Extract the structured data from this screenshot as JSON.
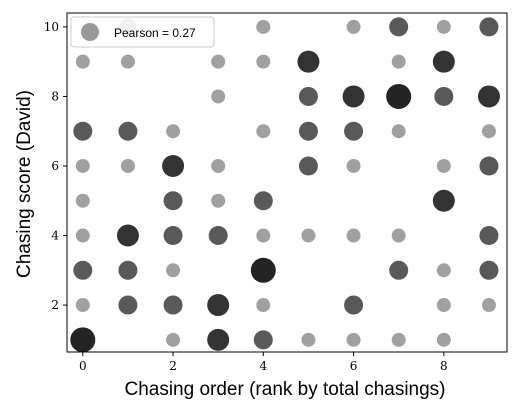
{
  "chart_data": {
    "type": "scatter",
    "title": "",
    "xlabel": "Chasing order (rank by total chasings)",
    "ylabel": "Chasing score (David)",
    "xlim": [
      -0.35,
      9.4
    ],
    "ylim": [
      0.65,
      10.4
    ],
    "xticks": [
      0,
      2,
      4,
      6,
      8
    ],
    "yticks": [
      2,
      4,
      6,
      8,
      10
    ],
    "grid": false,
    "legend": {
      "label": "Pearson = 0.27",
      "placement": "top-left"
    },
    "size_levels": {
      "1": {
        "r": 7,
        "color": "#a0a0a0"
      },
      "2": {
        "r": 8.5,
        "color": "#999999"
      },
      "3": {
        "r": 9.5,
        "color": "#595959"
      },
      "4": {
        "r": 11,
        "color": "#333333"
      },
      "5": {
        "r": 12.5,
        "color": "#242424"
      }
    },
    "points": [
      {
        "x": 0,
        "y": 1,
        "level": 5
      },
      {
        "x": 0,
        "y": 2,
        "level": 1
      },
      {
        "x": 0,
        "y": 3,
        "level": 3
      },
      {
        "x": 0,
        "y": 4,
        "level": 1
      },
      {
        "x": 0,
        "y": 5,
        "level": 1
      },
      {
        "x": 0,
        "y": 6,
        "level": 1
      },
      {
        "x": 0,
        "y": 7,
        "level": 3
      },
      {
        "x": 0,
        "y": 9,
        "level": 1
      },
      {
        "x": 1,
        "y": 2,
        "level": 3
      },
      {
        "x": 1,
        "y": 3,
        "level": 3
      },
      {
        "x": 1,
        "y": 4,
        "level": 4
      },
      {
        "x": 1,
        "y": 6,
        "level": 1
      },
      {
        "x": 1,
        "y": 7,
        "level": 3
      },
      {
        "x": 1,
        "y": 9,
        "level": 1
      },
      {
        "x": 1,
        "y": 10,
        "level": 2
      },
      {
        "x": 2,
        "y": 1,
        "level": 1
      },
      {
        "x": 2,
        "y": 2,
        "level": 3
      },
      {
        "x": 2,
        "y": 3,
        "level": 1
      },
      {
        "x": 2,
        "y": 4,
        "level": 3
      },
      {
        "x": 2,
        "y": 5,
        "level": 3
      },
      {
        "x": 2,
        "y": 6,
        "level": 4
      },
      {
        "x": 2,
        "y": 7,
        "level": 1
      },
      {
        "x": 3,
        "y": 1,
        "level": 4
      },
      {
        "x": 3,
        "y": 2,
        "level": 4
      },
      {
        "x": 3,
        "y": 4,
        "level": 3
      },
      {
        "x": 3,
        "y": 5,
        "level": 1
      },
      {
        "x": 3,
        "y": 6,
        "level": 1
      },
      {
        "x": 3,
        "y": 8,
        "level": 1
      },
      {
        "x": 3,
        "y": 9,
        "level": 1
      },
      {
        "x": 4,
        "y": 1,
        "level": 3
      },
      {
        "x": 4,
        "y": 2,
        "level": 1
      },
      {
        "x": 4,
        "y": 3,
        "level": 5
      },
      {
        "x": 4,
        "y": 4,
        "level": 1
      },
      {
        "x": 4,
        "y": 5,
        "level": 3
      },
      {
        "x": 4,
        "y": 7,
        "level": 1
      },
      {
        "x": 4,
        "y": 9,
        "level": 1
      },
      {
        "x": 4,
        "y": 10,
        "level": 1
      },
      {
        "x": 5,
        "y": 1,
        "level": 1
      },
      {
        "x": 5,
        "y": 4,
        "level": 1
      },
      {
        "x": 5,
        "y": 6,
        "level": 3
      },
      {
        "x": 5,
        "y": 7,
        "level": 3
      },
      {
        "x": 5,
        "y": 8,
        "level": 3
      },
      {
        "x": 5,
        "y": 9,
        "level": 4
      },
      {
        "x": 6,
        "y": 1,
        "level": 1
      },
      {
        "x": 6,
        "y": 2,
        "level": 3
      },
      {
        "x": 6,
        "y": 4,
        "level": 1
      },
      {
        "x": 6,
        "y": 6,
        "level": 1
      },
      {
        "x": 6,
        "y": 7,
        "level": 3
      },
      {
        "x": 6,
        "y": 8,
        "level": 4
      },
      {
        "x": 6,
        "y": 10,
        "level": 1
      },
      {
        "x": 7,
        "y": 1,
        "level": 1
      },
      {
        "x": 7,
        "y": 3,
        "level": 3
      },
      {
        "x": 7,
        "y": 4,
        "level": 1
      },
      {
        "x": 7,
        "y": 7,
        "level": 1
      },
      {
        "x": 7,
        "y": 8,
        "level": 5
      },
      {
        "x": 7,
        "y": 9,
        "level": 1
      },
      {
        "x": 7,
        "y": 10,
        "level": 3
      },
      {
        "x": 8,
        "y": 1,
        "level": 1
      },
      {
        "x": 8,
        "y": 2,
        "level": 1
      },
      {
        "x": 8,
        "y": 3,
        "level": 1
      },
      {
        "x": 8,
        "y": 5,
        "level": 4
      },
      {
        "x": 8,
        "y": 6,
        "level": 1
      },
      {
        "x": 8,
        "y": 8,
        "level": 3
      },
      {
        "x": 8,
        "y": 9,
        "level": 4
      },
      {
        "x": 8,
        "y": 10,
        "level": 1
      },
      {
        "x": 9,
        "y": 2,
        "level": 1
      },
      {
        "x": 9,
        "y": 3,
        "level": 3
      },
      {
        "x": 9,
        "y": 4,
        "level": 3
      },
      {
        "x": 9,
        "y": 6,
        "level": 3
      },
      {
        "x": 9,
        "y": 7,
        "level": 1
      },
      {
        "x": 9,
        "y": 8,
        "level": 4
      },
      {
        "x": 9,
        "y": 10,
        "level": 3
      }
    ]
  }
}
